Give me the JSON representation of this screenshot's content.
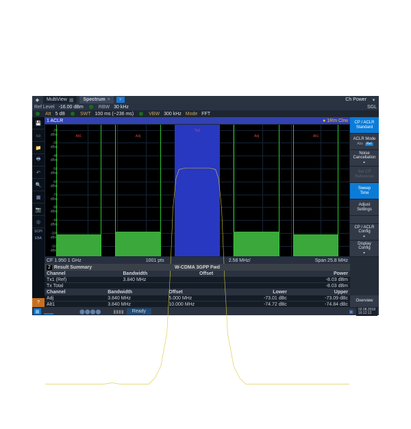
{
  "header": {
    "multiview_label": "MultiView",
    "spectrum_label": "Spectrum",
    "ch_power_label": "Ch Power"
  },
  "info1": {
    "ref_level_lbl": "Ref Level",
    "ref_level_val": "-16.00 dBm",
    "rbw_lbl": "RBW",
    "rbw_val": "30 kHz",
    "sgl": "SGL"
  },
  "info2": {
    "att_lbl": "Att",
    "att_val": "5 dB",
    "swt_lbl": "SWT",
    "swt_val": "100 ms (~236 ms)",
    "vbw_lbl": "VBW",
    "vbw_val": "300 kHz",
    "mode_lbl": "Mode",
    "mode_val": "FFT"
  },
  "chart": {
    "title": "1 ACLR",
    "trace_label": "● 1Rm Clrw",
    "y_labels": [
      "-20 dBm",
      "-30 dBm",
      "-40 dBm",
      "-50 dBm",
      "-60 dBm",
      "-70 dBm",
      "-80 dBm",
      "-90 dBm",
      "-100 dBm",
      "-110 dBm"
    ],
    "y_min": -118,
    "y_max": -16,
    "tx_label": "Tx1",
    "adj_label": "Adj",
    "alt_label": "Alt1",
    "channels": {
      "tx": {
        "left_pct": 42.5,
        "width_pct": 15,
        "bar_top_dbm": -30
      },
      "adjL": {
        "left_pct": 23,
        "width_pct": 15,
        "bar_top_dbm": -99
      },
      "adjR": {
        "left_pct": 62,
        "width_pct": 15,
        "bar_top_dbm": -99
      },
      "altL": {
        "left_pct": 3.5,
        "width_pct": 15,
        "bar_top_dbm": -101
      },
      "altR": {
        "left_pct": 81.5,
        "width_pct": 15,
        "bar_top_dbm": -101
      }
    },
    "trace_color": "#d8c838",
    "grid_color": "#162436",
    "trace_points": [
      [
        0,
        -103
      ],
      [
        3,
        -103
      ],
      [
        6,
        -103
      ],
      [
        8,
        -103
      ],
      [
        10,
        -103
      ],
      [
        13,
        -103
      ],
      [
        16,
        -103
      ],
      [
        19,
        -103
      ],
      [
        22,
        -102.5
      ],
      [
        25,
        -103
      ],
      [
        28,
        -103
      ],
      [
        31,
        -103
      ],
      [
        34,
        -103
      ],
      [
        36,
        -101
      ],
      [
        38,
        -97
      ],
      [
        40,
        -86
      ],
      [
        41,
        -68
      ],
      [
        42,
        -44
      ],
      [
        43,
        -34
      ],
      [
        44,
        -31
      ],
      [
        46,
        -30.5
      ],
      [
        48,
        -30.5
      ],
      [
        50,
        -30.5
      ],
      [
        52,
        -30.5
      ],
      [
        54,
        -30.5
      ],
      [
        56,
        -31
      ],
      [
        57,
        -34
      ],
      [
        58,
        -44
      ],
      [
        59,
        -68
      ],
      [
        60,
        -86
      ],
      [
        62,
        -97
      ],
      [
        64,
        -101
      ],
      [
        66,
        -103
      ],
      [
        69,
        -103
      ],
      [
        72,
        -103
      ],
      [
        75,
        -103
      ],
      [
        78,
        -103
      ],
      [
        81,
        -103
      ],
      [
        84,
        -103
      ],
      [
        87,
        -103
      ],
      [
        90,
        -103
      ],
      [
        93,
        -103
      ],
      [
        96,
        -103
      ],
      [
        100,
        -103
      ]
    ]
  },
  "footer": {
    "cf_label": "CF 1.950 1 GHz",
    "pts_label": "1001 pts",
    "div_label": "2.58 MHz/",
    "span_label": "Span 25.8 MHz"
  },
  "softkeys": {
    "k1a": "CP / ACLR",
    "k1b": "Standard",
    "k2a": "ACLR Mode",
    "k2_abs": "Abs",
    "k2_rel": "Rel",
    "k3a": "Noise",
    "k3b": "Cancellation",
    "k4a": "Set CP",
    "k4b": "Reference",
    "k5a": "Sweep",
    "k5b": "Time",
    "k6a": "Adjust",
    "k6b": "Settings",
    "k7a": "CP / ACLR",
    "k7b": "Config",
    "k8a": "Display",
    "k8b": "Config",
    "k9": "Overview"
  },
  "table": {
    "section_no": "2",
    "section_title": "Result Summary",
    "standard": "W-CDMA 3GPP Fwd",
    "cols1": [
      "Channel",
      "Bandwidth",
      "Offset",
      "Power"
    ],
    "r1": [
      "Tx1 (Ref)",
      "3.840 MHz",
      "",
      "-8.03 dBm"
    ],
    "r2": [
      "Tx Total",
      "",
      "",
      "-8.03 dBm"
    ],
    "cols2": [
      "Channel",
      "Bandwidth",
      "Offset",
      "Lower",
      "Upper"
    ],
    "r3": [
      "Adj",
      "3.840 MHz",
      "5.000 MHz",
      "-73.01 dBc",
      "-73.09 dBc"
    ],
    "r4": [
      "Alt1",
      "3.840 MHz",
      "10.000 MHz",
      "-74.72 dBc",
      "-74.84 dBc"
    ]
  },
  "rail": {
    "scpi": "SCPI",
    "eba": "EBA"
  },
  "status": {
    "ready": "Ready",
    "date": "02.08.2018",
    "time": "16:12:12"
  }
}
